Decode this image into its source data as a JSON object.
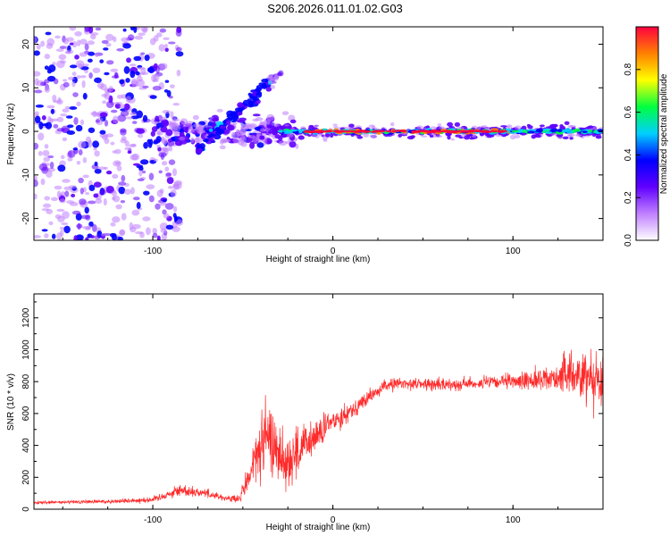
{
  "title": "S206.2026.011.01.02.G03",
  "chart_data": [
    {
      "type": "heatmap",
      "xlabel": "Height of straight line (km)",
      "ylabel": "Frequency (Hz)",
      "xlim": [
        -166,
        150
      ],
      "ylim": [
        -25,
        24
      ],
      "xticks": [
        "-100",
        "0",
        "100"
      ],
      "yticks": [
        "20",
        "10",
        "0",
        "-10",
        "-20"
      ],
      "colorbar": {
        "label": "Normalized spectral amplitude",
        "range": [
          0,
          1
        ],
        "ticks": [
          "0.0",
          "0.2",
          "0.4",
          "0.6",
          "0.8"
        ],
        "colors": [
          "#ffffff",
          "#c080ff",
          "#6000ff",
          "#0000ff",
          "#00d0ff",
          "#00ff40",
          "#ffff00",
          "#ff8000",
          "#ff0040"
        ]
      },
      "features": {
        "ridge": {
          "x_start": -30,
          "x_end": 150,
          "frequency": 0,
          "peak_amplitude": 0.9
        },
        "diagonal_arc": {
          "x_start": -75,
          "x_end": -28,
          "f_start": -4,
          "f_end": 14
        },
        "scatter_region": {
          "x_start": -166,
          "x_end": -100,
          "f_range": [
            -25,
            24
          ]
        }
      }
    },
    {
      "type": "line",
      "xlabel": "Height of straight line (km)",
      "ylabel": "SNR (10 * v/v)",
      "xlim": [
        -166,
        150
      ],
      "ylim": [
        0,
        1350
      ],
      "xticks": [
        "-100",
        "0",
        "100"
      ],
      "yticks": [
        "0",
        "200",
        "400",
        "600",
        "800",
        "1000",
        "1200"
      ],
      "color": "#ff2a2a",
      "envelope": {
        "x": [
          -166,
          -120,
          -100,
          -85,
          -70,
          -60,
          -52,
          -45,
          -40,
          -35,
          -30,
          -25,
          -20,
          -10,
          0,
          10,
          20,
          30,
          40,
          60,
          80,
          100,
          120,
          135,
          150
        ],
        "y": [
          40,
          50,
          60,
          120,
          100,
          70,
          60,
          250,
          400,
          450,
          350,
          300,
          350,
          450,
          550,
          620,
          700,
          780,
          790,
          780,
          790,
          800,
          820,
          850,
          820
        ],
        "noise": [
          10,
          15,
          20,
          40,
          30,
          20,
          30,
          150,
          220,
          230,
          200,
          200,
          180,
          120,
          80,
          60,
          50,
          40,
          40,
          40,
          40,
          50,
          80,
          160,
          220
        ]
      }
    }
  ]
}
